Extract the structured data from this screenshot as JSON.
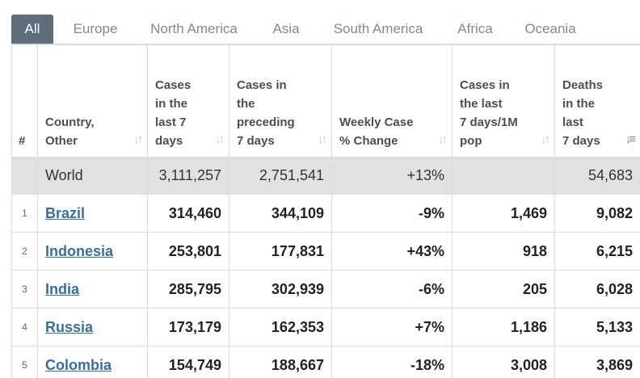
{
  "tabs": [
    "All",
    "Europe",
    "North America",
    "Asia",
    "South America",
    "Africa",
    "Oceania"
  ],
  "headers": {
    "rank": "#",
    "country": [
      "Country,",
      "Other"
    ],
    "cases7": [
      "Cases",
      "in the",
      "last 7",
      "days"
    ],
    "casesPrev": [
      "Cases in",
      "the",
      "preceding",
      "7 days"
    ],
    "weekly": [
      "Weekly Case",
      "% Change"
    ],
    "per1m": [
      "Cases in",
      "the last",
      "7 days/1M",
      "pop"
    ],
    "deaths7": [
      "Deaths",
      "in the",
      "last",
      "7 days"
    ]
  },
  "world": {
    "country": "World",
    "cases7": "3,111,257",
    "casesPrev": "2,751,541",
    "weekly": "+13%",
    "per1m": "",
    "deaths7": "54,683"
  },
  "rows": [
    {
      "rank": "1",
      "country": "Brazil",
      "cases7": "314,460",
      "casesPrev": "344,109",
      "weekly": "-9%",
      "per1m": "1,469",
      "deaths7": "9,082"
    },
    {
      "rank": "2",
      "country": "Indonesia",
      "cases7": "253,801",
      "casesPrev": "177,831",
      "weekly": "+43%",
      "per1m": "918",
      "deaths7": "6,215"
    },
    {
      "rank": "3",
      "country": "India",
      "cases7": "285,795",
      "casesPrev": "302,939",
      "weekly": "-6%",
      "per1m": "205",
      "deaths7": "6,028"
    },
    {
      "rank": "4",
      "country": "Russia",
      "cases7": "173,179",
      "casesPrev": "162,353",
      "weekly": "+7%",
      "per1m": "1,186",
      "deaths7": "5,133"
    },
    {
      "rank": "5",
      "country": "Colombia",
      "cases7": "154,749",
      "casesPrev": "188,667",
      "weekly": "-18%",
      "per1m": "3,008",
      "deaths7": "3,869"
    }
  ],
  "icons": {
    "sort": "sort-arrows-icon",
    "sortActive": "sort-descending-icon"
  },
  "colors": {
    "activeTab": "#5e6d79",
    "link": "#366fa6",
    "worldRow": "#e1e1e1"
  }
}
